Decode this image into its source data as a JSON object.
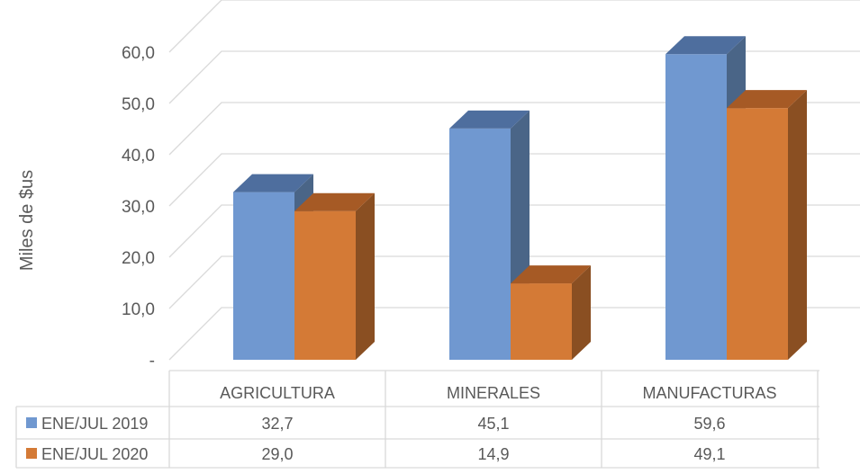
{
  "chart_data": {
    "type": "bar",
    "three_d": true,
    "categories": [
      "AGRICULTURA",
      "MINERALES",
      "MANUFACTURAS"
    ],
    "series": [
      {
        "name": "ENE/JUL 2019",
        "values": [
          32.7,
          45.1,
          59.6
        ],
        "display": [
          "32,7",
          "45,1",
          "59,6"
        ]
      },
      {
        "name": "ENE/JUL 2020",
        "values": [
          29.0,
          14.9,
          49.1
        ],
        "display": [
          "29,0",
          "14,9",
          "49,1"
        ]
      }
    ],
    "ylabel": "Miles de $us",
    "ylim": [
      0,
      60
    ],
    "yticks": [
      0,
      10,
      20,
      30,
      40,
      50,
      60
    ],
    "ytick_labels": [
      "-",
      "10,0",
      "20,0",
      "30,0",
      "40,0",
      "50,0",
      "60,0"
    ],
    "grid": true,
    "legend": "data-table",
    "colors": {
      "series_front": [
        "#7098D0",
        "#D47A36"
      ],
      "series_side": [
        "#4A6587",
        "#8A4F22"
      ],
      "series_top": [
        "#4E6E9E",
        "#A65A25"
      ],
      "grid": "#D9D9D9",
      "text": "#595959"
    }
  }
}
